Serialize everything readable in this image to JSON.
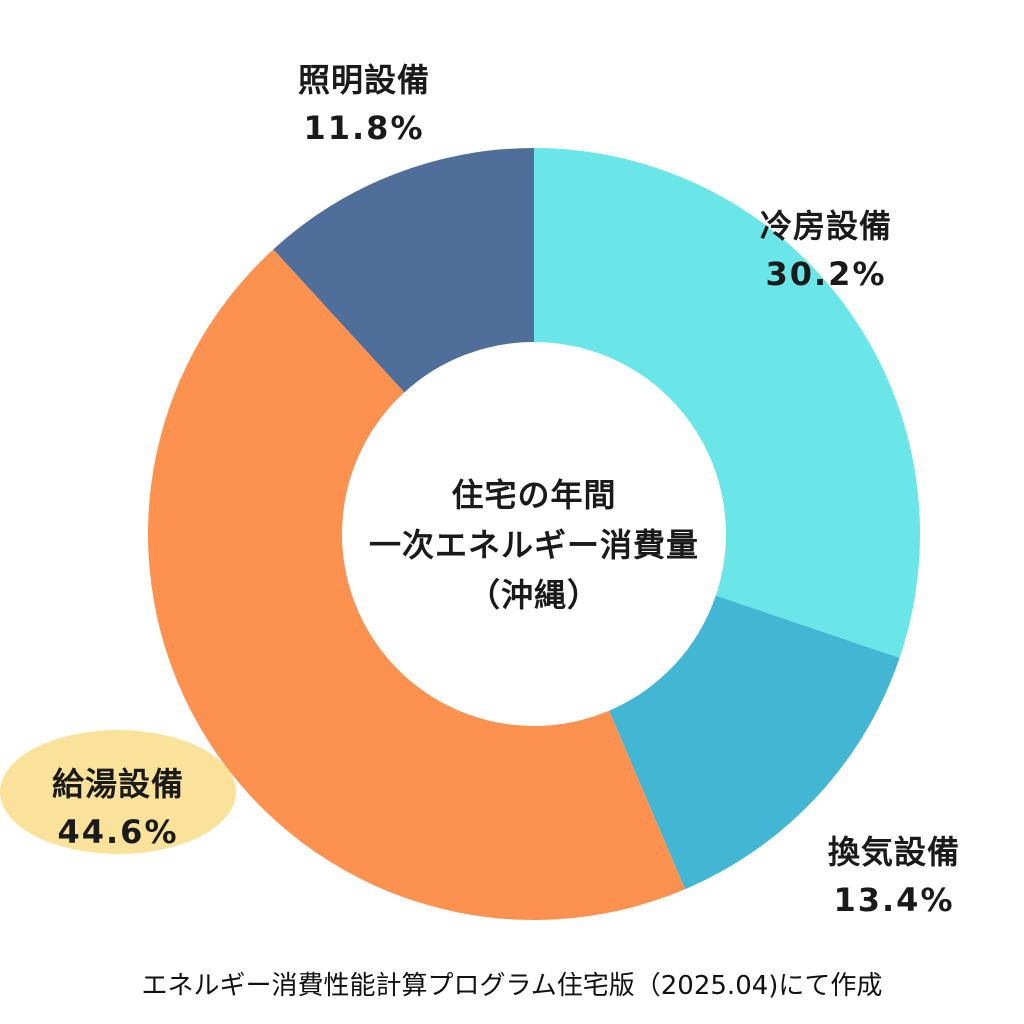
{
  "chart_data": {
    "type": "pie",
    "variant": "donut",
    "title_lines": [
      "住宅の年間",
      "一次エネルギー消費量",
      "（沖縄）"
    ],
    "slices": [
      {
        "name": "冷房設備",
        "value": 30.2,
        "label": "30.2%",
        "color": "#6ae5e8"
      },
      {
        "name": "換気設備",
        "value": 13.4,
        "label": "13.4%",
        "color": "#43b6d3"
      },
      {
        "name": "給湯設備",
        "value": 44.6,
        "label": "44.6%",
        "color": "#fd9150"
      },
      {
        "name": "照明設備",
        "value": 11.8,
        "label": "11.8%",
        "color": "#506e9a"
      }
    ],
    "start_angle": "12 o'clock",
    "direction": "clockwise",
    "highlighted_slice": "給湯設備",
    "highlight_color": "#fbe29a",
    "legend": "none"
  },
  "footnote": "エネルギー消費性能計算プログラム住宅版（2025.04)にて作成"
}
